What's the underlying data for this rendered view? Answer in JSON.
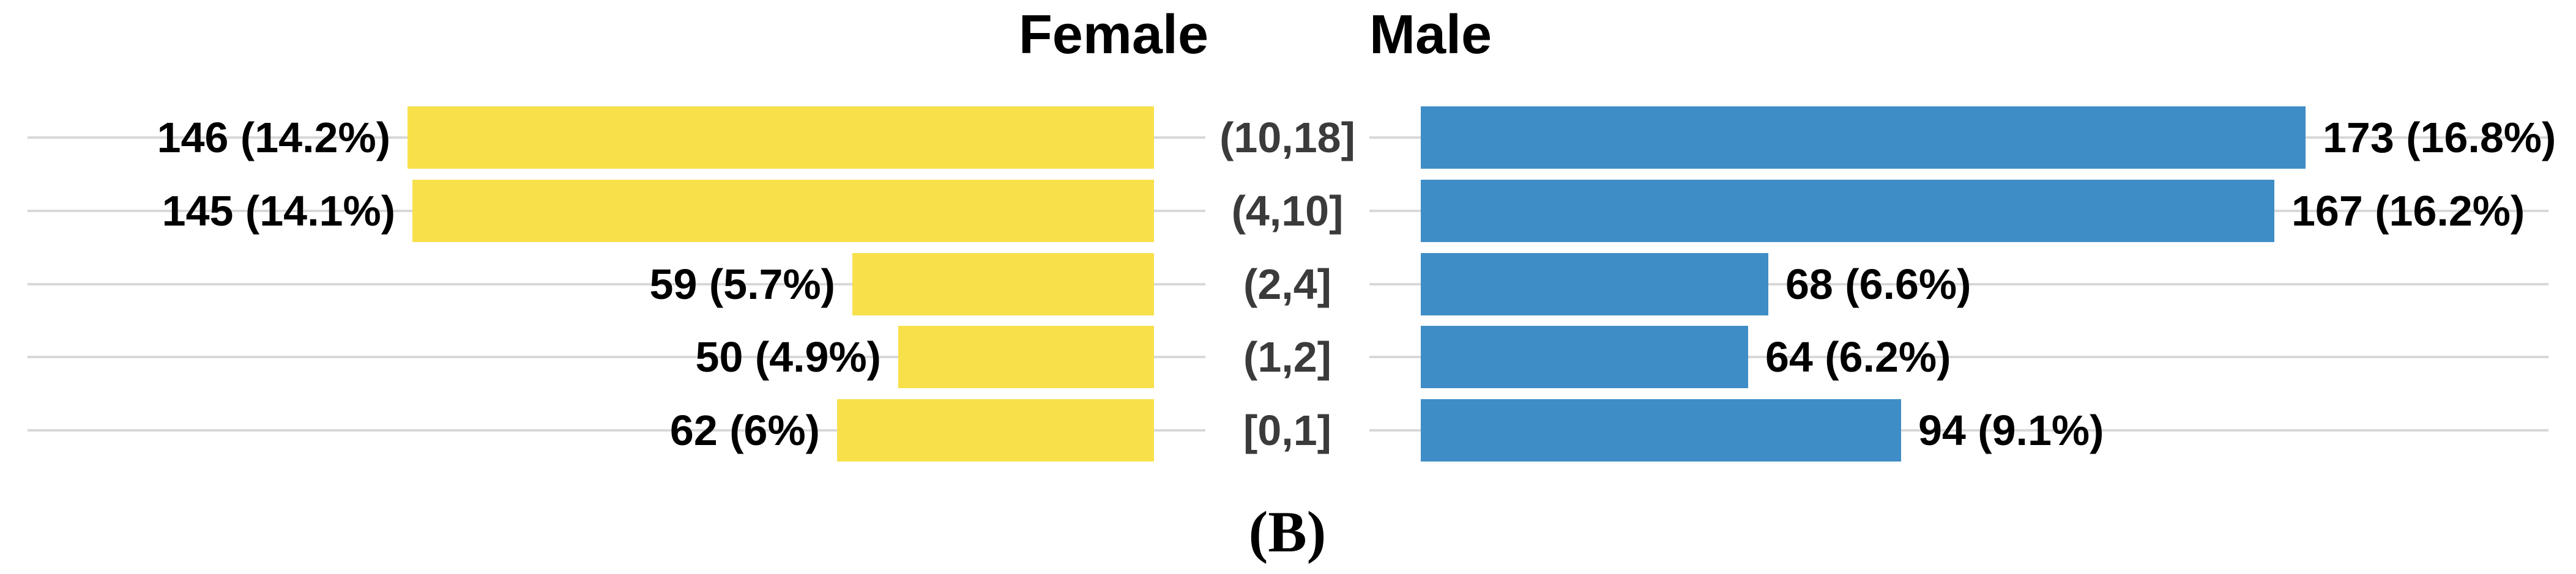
{
  "figure": {
    "female_title": "Female",
    "male_title": "Male",
    "caption": "(B)"
  },
  "colors": {
    "female_bar": "#F8E04A",
    "male_bar": "#3F8DC6",
    "gridline": "#D8D8D8",
    "category_text": "#3B3B3B",
    "value_text": "#000000"
  },
  "chart_data": {
    "type": "bar",
    "subtype": "population-pyramid",
    "categories": [
      "(10,18]",
      "(4,10]",
      "(2,4]",
      "(1,2]",
      "[0,1]"
    ],
    "series": [
      {
        "name": "Female",
        "side": "left",
        "values": [
          146,
          145,
          59,
          50,
          62
        ],
        "labels": [
          "146 (14.2%)",
          "145 (14.1%)",
          "59 (5.7%)",
          "50 (4.9%)",
          "62 (6%)"
        ]
      },
      {
        "name": "Male",
        "side": "right",
        "values": [
          173,
          167,
          68,
          64,
          94
        ],
        "labels": [
          "173 (16.8%)",
          "167 (16.2%)",
          "68 (6.6%)",
          "64 (6.2%)",
          "94 (9.1%)"
        ]
      }
    ],
    "value_unit": "count (percent)",
    "xlim_per_panel": [
      0,
      209
    ],
    "grid": "horizontal-major-only",
    "legend": "none",
    "value_label_position": "outside-end",
    "category_label_position": "center-gutter"
  }
}
